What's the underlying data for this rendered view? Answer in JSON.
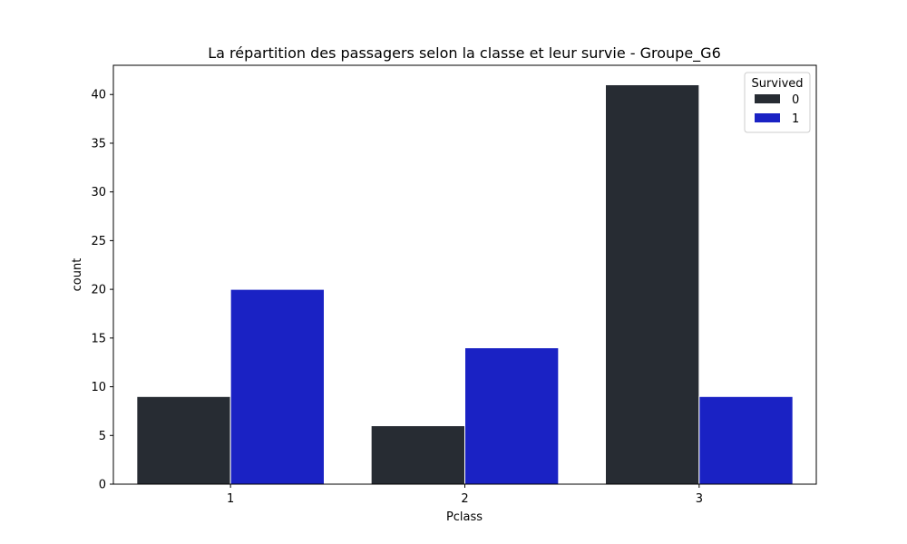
{
  "chart_data": {
    "type": "bar",
    "title": "La répartition des passagers selon la classe et leur survie - Groupe_G6",
    "xlabel": "Pclass",
    "ylabel": "count",
    "categories": [
      "1",
      "2",
      "3"
    ],
    "series": [
      {
        "name": "0",
        "values": [
          9,
          6,
          41
        ],
        "color": "#272c33"
      },
      {
        "name": "1",
        "values": [
          20,
          14,
          9
        ],
        "color": "#1a22c4"
      }
    ],
    "ylim": [
      0,
      43
    ],
    "yticks": [
      0,
      5,
      10,
      15,
      20,
      25,
      30,
      35,
      40
    ],
    "grid": false,
    "legend": {
      "title": "Survived",
      "placement": "top-right"
    }
  }
}
